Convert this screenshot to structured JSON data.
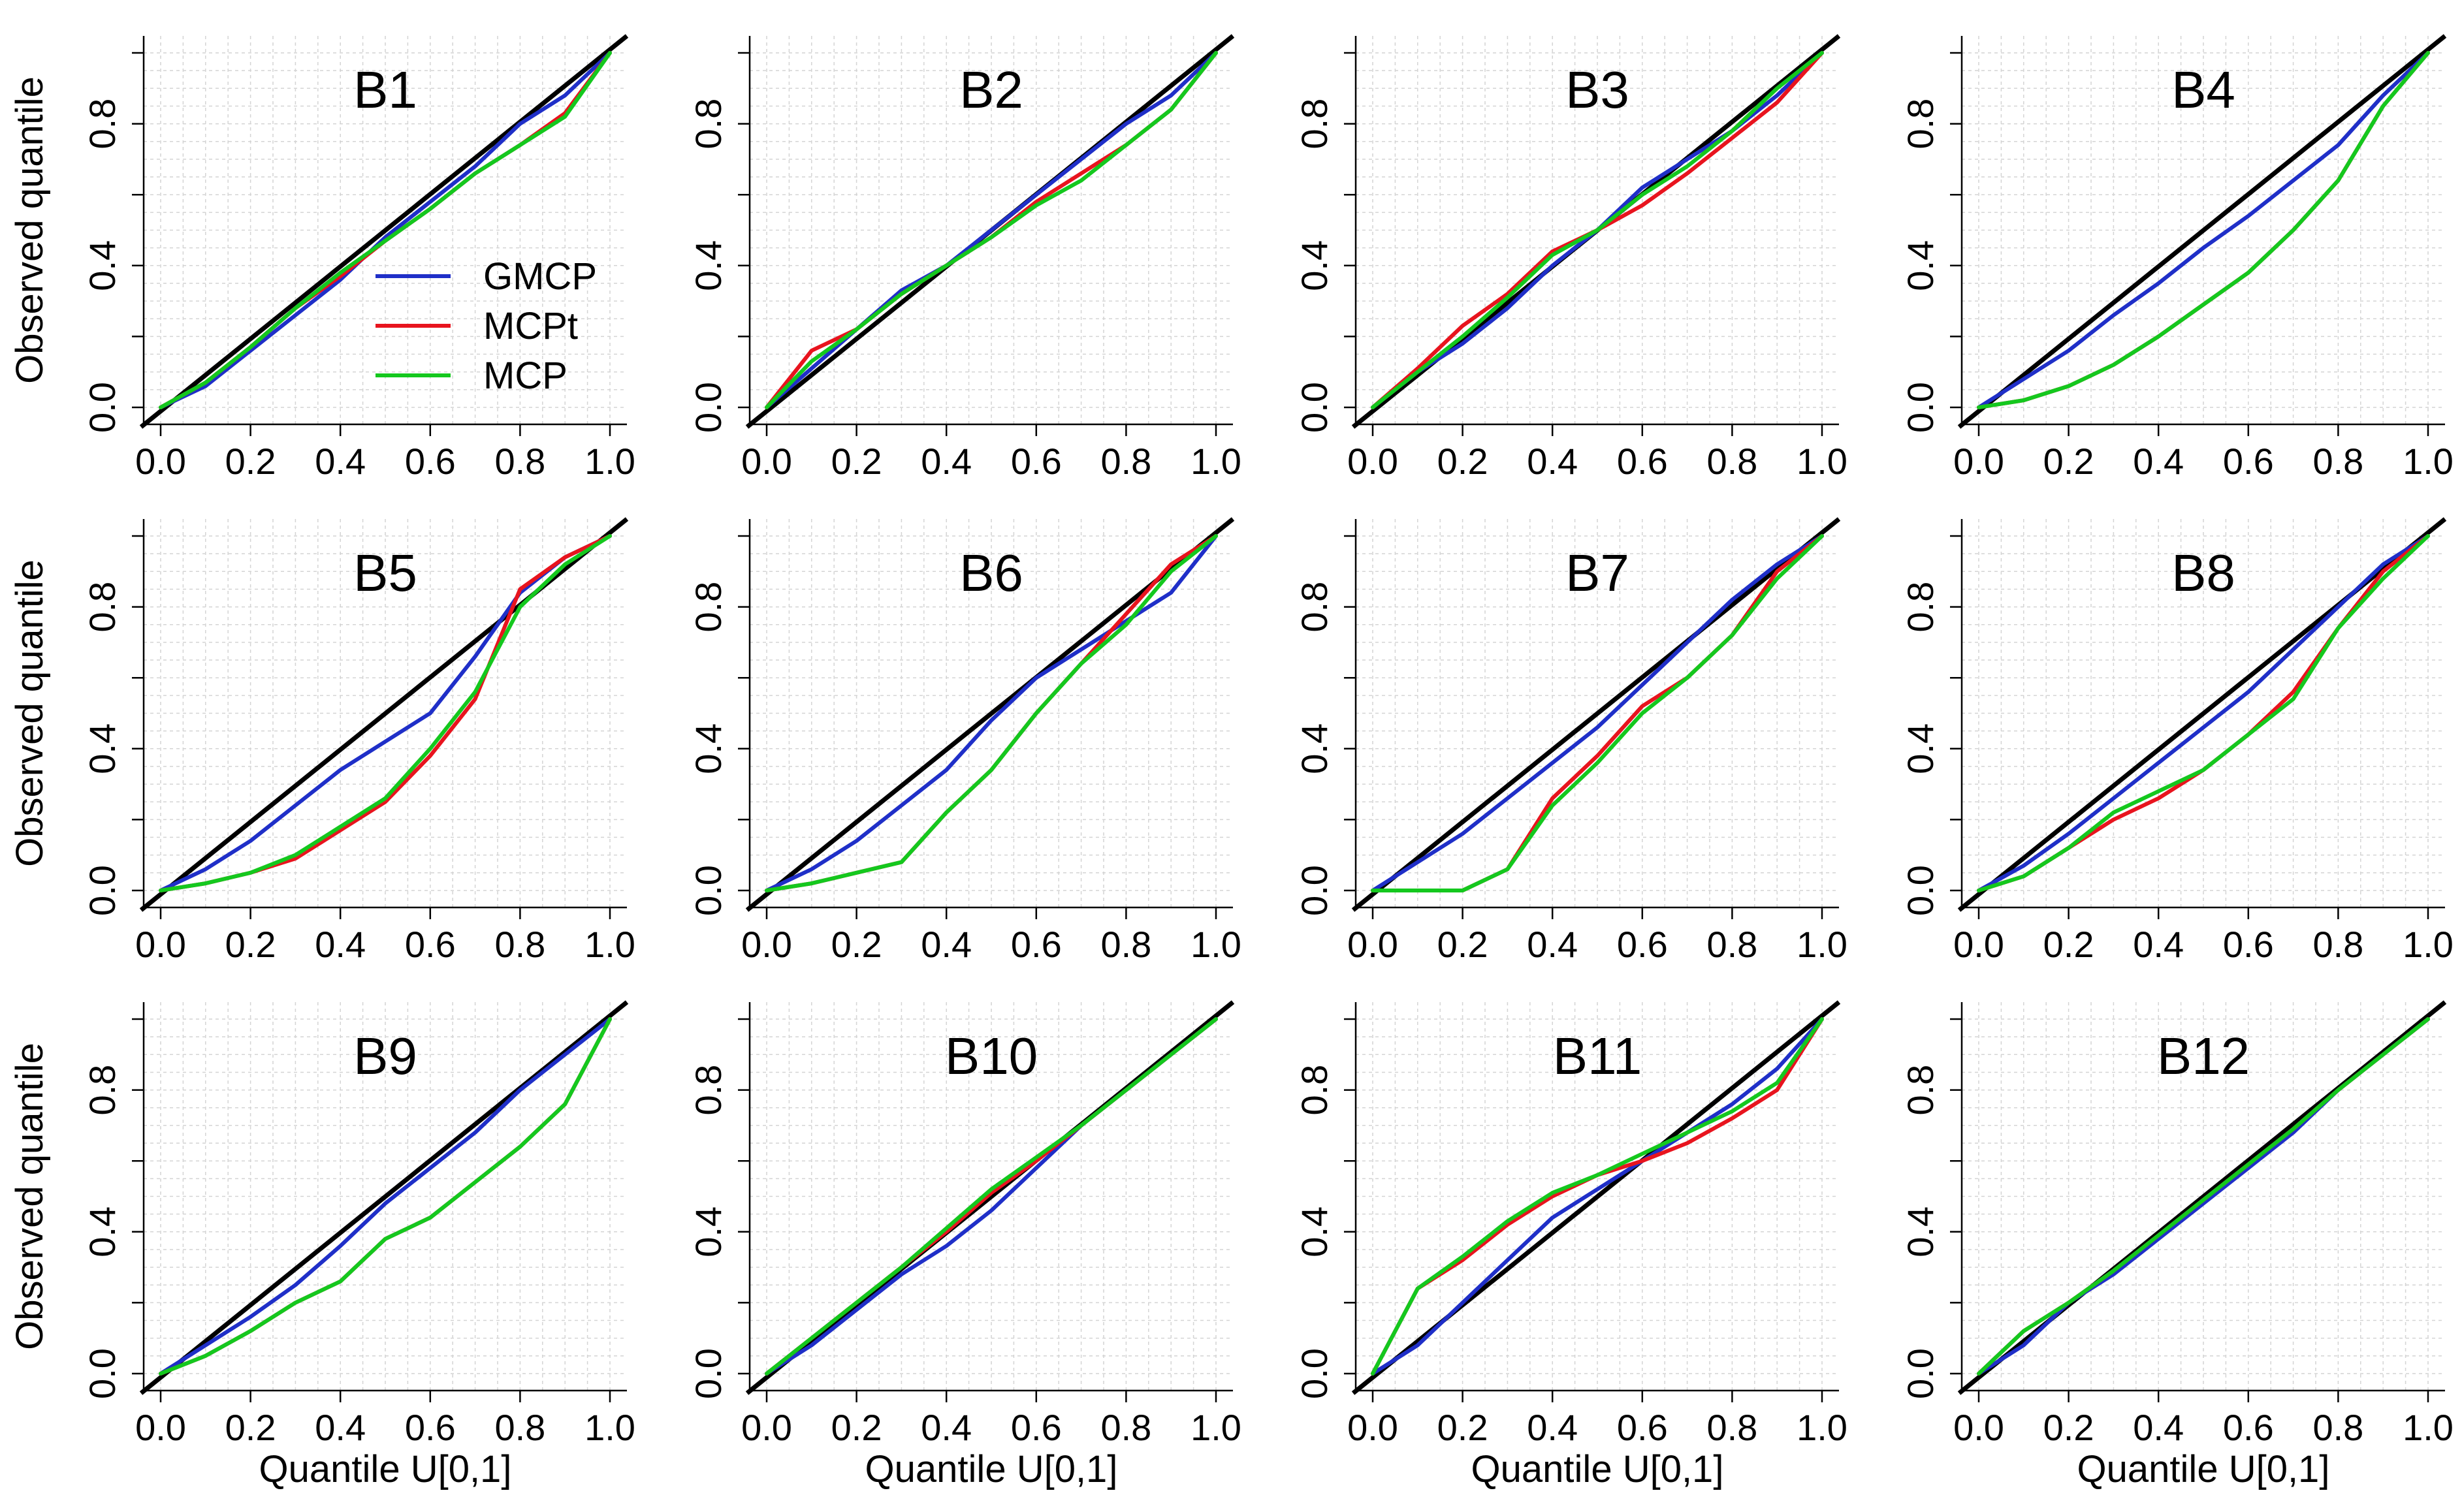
{
  "chart_data": {
    "type": "line",
    "xlabel": "Quantile U[0,1]",
    "ylabel": "Observed quantile",
    "x_ticks": [
      "0.0",
      "0.2",
      "0.4",
      "0.6",
      "0.8",
      "1.0"
    ],
    "y_ticks": [
      "0.0",
      "0.4",
      "0.8"
    ],
    "xlim": [
      0,
      1
    ],
    "ylim": [
      0,
      1
    ],
    "grid": true,
    "reference_line": {
      "name": "y = x",
      "color": "#000000"
    },
    "legend": {
      "panel": "B1",
      "placement": "center-right",
      "entries": [
        {
          "name": "GMCP",
          "color": "#1f2fc8"
        },
        {
          "name": "MCPt",
          "color": "#e8141e"
        },
        {
          "name": "MCP",
          "color": "#14c81e"
        }
      ]
    },
    "panels": [
      {
        "title": "B1",
        "series": [
          {
            "name": "GMCP",
            "values": [
              0,
              0.06,
              0.16,
              0.26,
              0.36,
              0.48,
              0.58,
              0.68,
              0.8,
              0.88,
              1.0
            ]
          },
          {
            "name": "MCPt",
            "values": [
              0,
              0.07,
              0.17,
              0.28,
              0.37,
              0.47,
              0.56,
              0.66,
              0.74,
              0.83,
              1.0
            ]
          },
          {
            "name": "MCP",
            "values": [
              0,
              0.07,
              0.17,
              0.28,
              0.38,
              0.47,
              0.56,
              0.66,
              0.74,
              0.82,
              1.0
            ]
          }
        ]
      },
      {
        "title": "B2",
        "series": [
          {
            "name": "GMCP",
            "values": [
              0,
              0.11,
              0.22,
              0.33,
              0.4,
              0.5,
              0.6,
              0.7,
              0.8,
              0.88,
              1.0
            ]
          },
          {
            "name": "MCPt",
            "values": [
              0,
              0.16,
              0.22,
              0.32,
              0.4,
              0.48,
              0.58,
              0.66,
              0.74,
              0.84,
              1.0
            ]
          },
          {
            "name": "MCP",
            "values": [
              0,
              0.13,
              0.22,
              0.32,
              0.4,
              0.48,
              0.57,
              0.64,
              0.74,
              0.84,
              1.0
            ]
          }
        ]
      },
      {
        "title": "B3",
        "series": [
          {
            "name": "GMCP",
            "values": [
              0,
              0.1,
              0.18,
              0.28,
              0.4,
              0.5,
              0.62,
              0.7,
              0.78,
              0.88,
              1.0
            ]
          },
          {
            "name": "MCPt",
            "values": [
              0,
              0.11,
              0.23,
              0.32,
              0.44,
              0.5,
              0.57,
              0.66,
              0.76,
              0.86,
              1.0
            ]
          },
          {
            "name": "MCP",
            "values": [
              0,
              0.1,
              0.2,
              0.31,
              0.43,
              0.5,
              0.6,
              0.68,
              0.78,
              0.9,
              1.0
            ]
          }
        ]
      },
      {
        "title": "B4",
        "series": [
          {
            "name": "GMCP",
            "values": [
              0,
              0.08,
              0.16,
              0.26,
              0.35,
              0.45,
              0.54,
              0.64,
              0.74,
              0.88,
              1.0
            ]
          },
          {
            "name": "MCPt",
            "values": [
              0,
              0.02,
              0.06,
              0.12,
              0.2,
              0.29,
              0.38,
              0.5,
              0.64,
              0.85,
              1.0
            ]
          },
          {
            "name": "MCP",
            "values": [
              0,
              0.02,
              0.06,
              0.12,
              0.2,
              0.29,
              0.38,
              0.5,
              0.64,
              0.85,
              1.0
            ]
          }
        ]
      },
      {
        "title": "B5",
        "series": [
          {
            "name": "GMCP",
            "values": [
              0,
              0.06,
              0.14,
              0.24,
              0.34,
              0.42,
              0.5,
              0.66,
              0.84,
              0.94,
              1.0
            ]
          },
          {
            "name": "MCPt",
            "values": [
              0,
              0.02,
              0.05,
              0.09,
              0.17,
              0.25,
              0.38,
              0.54,
              0.85,
              0.94,
              1.0
            ]
          },
          {
            "name": "MCP",
            "values": [
              0,
              0.02,
              0.05,
              0.1,
              0.18,
              0.26,
              0.4,
              0.56,
              0.8,
              0.92,
              1.0
            ]
          }
        ]
      },
      {
        "title": "B6",
        "series": [
          {
            "name": "GMCP",
            "values": [
              0,
              0.06,
              0.14,
              0.24,
              0.34,
              0.48,
              0.6,
              0.68,
              0.76,
              0.84,
              1.0
            ]
          },
          {
            "name": "MCPt",
            "values": [
              0,
              0.02,
              0.05,
              0.08,
              0.22,
              0.34,
              0.5,
              0.64,
              0.78,
              0.92,
              1.0
            ]
          },
          {
            "name": "MCP",
            "values": [
              0,
              0.02,
              0.05,
              0.08,
              0.22,
              0.34,
              0.5,
              0.64,
              0.75,
              0.9,
              1.0
            ]
          }
        ]
      },
      {
        "title": "B7",
        "series": [
          {
            "name": "GMCP",
            "values": [
              0,
              0.08,
              0.16,
              0.26,
              0.36,
              0.46,
              0.58,
              0.7,
              0.82,
              0.92,
              1.0
            ]
          },
          {
            "name": "MCPt",
            "values": [
              0,
              0.0,
              0.0,
              0.06,
              0.26,
              0.38,
              0.52,
              0.6,
              0.72,
              0.9,
              1.0
            ]
          },
          {
            "name": "MCP",
            "values": [
              0,
              0.0,
              0.0,
              0.06,
              0.24,
              0.36,
              0.5,
              0.6,
              0.72,
              0.88,
              1.0
            ]
          }
        ]
      },
      {
        "title": "B8",
        "series": [
          {
            "name": "GMCP",
            "values": [
              0,
              0.07,
              0.16,
              0.26,
              0.36,
              0.46,
              0.56,
              0.68,
              0.8,
              0.92,
              1.0
            ]
          },
          {
            "name": "MCPt",
            "values": [
              0,
              0.04,
              0.12,
              0.2,
              0.26,
              0.34,
              0.44,
              0.56,
              0.74,
              0.9,
              1.0
            ]
          },
          {
            "name": "MCP",
            "values": [
              0,
              0.04,
              0.12,
              0.22,
              0.28,
              0.34,
              0.44,
              0.54,
              0.74,
              0.88,
              1.0
            ]
          }
        ]
      },
      {
        "title": "B9",
        "series": [
          {
            "name": "GMCP",
            "values": [
              0,
              0.08,
              0.16,
              0.25,
              0.36,
              0.48,
              0.58,
              0.68,
              0.8,
              0.9,
              1.0
            ]
          },
          {
            "name": "MCPt",
            "values": [
              0,
              0.05,
              0.12,
              0.2,
              0.26,
              0.38,
              0.44,
              0.54,
              0.64,
              0.76,
              1.0
            ]
          },
          {
            "name": "MCP",
            "values": [
              0,
              0.05,
              0.12,
              0.2,
              0.26,
              0.38,
              0.44,
              0.54,
              0.64,
              0.76,
              1.0
            ]
          }
        ]
      },
      {
        "title": "B10",
        "series": [
          {
            "name": "GMCP",
            "values": [
              0,
              0.08,
              0.18,
              0.28,
              0.36,
              0.46,
              0.58,
              0.7,
              0.8,
              0.9,
              1.0
            ]
          },
          {
            "name": "MCPt",
            "values": [
              0,
              0.1,
              0.2,
              0.3,
              0.4,
              0.51,
              0.6,
              0.7,
              0.8,
              0.9,
              1.0
            ]
          },
          {
            "name": "MCP",
            "values": [
              0,
              0.1,
              0.2,
              0.3,
              0.41,
              0.52,
              0.61,
              0.7,
              0.8,
              0.9,
              1.0
            ]
          }
        ]
      },
      {
        "title": "B11",
        "series": [
          {
            "name": "GMCP",
            "values": [
              0,
              0.08,
              0.2,
              0.32,
              0.44,
              0.52,
              0.6,
              0.68,
              0.76,
              0.86,
              1.0
            ]
          },
          {
            "name": "MCPt",
            "values": [
              0,
              0.24,
              0.32,
              0.42,
              0.5,
              0.56,
              0.6,
              0.65,
              0.72,
              0.8,
              1.0
            ]
          },
          {
            "name": "MCP",
            "values": [
              0,
              0.24,
              0.33,
              0.43,
              0.51,
              0.56,
              0.62,
              0.68,
              0.74,
              0.82,
              1.0
            ]
          }
        ]
      },
      {
        "title": "B12",
        "series": [
          {
            "name": "GMCP",
            "values": [
              0,
              0.08,
              0.2,
              0.28,
              0.38,
              0.48,
              0.58,
              0.68,
              0.8,
              0.9,
              1.0
            ]
          },
          {
            "name": "MCPt",
            "values": [
              0,
              0.12,
              0.2,
              0.29,
              0.39,
              0.49,
              0.59,
              0.69,
              0.8,
              0.9,
              1.0
            ]
          },
          {
            "name": "MCP",
            "values": [
              0,
              0.12,
              0.2,
              0.29,
              0.39,
              0.49,
              0.59,
              0.69,
              0.8,
              0.9,
              1.0
            ]
          }
        ]
      }
    ]
  }
}
